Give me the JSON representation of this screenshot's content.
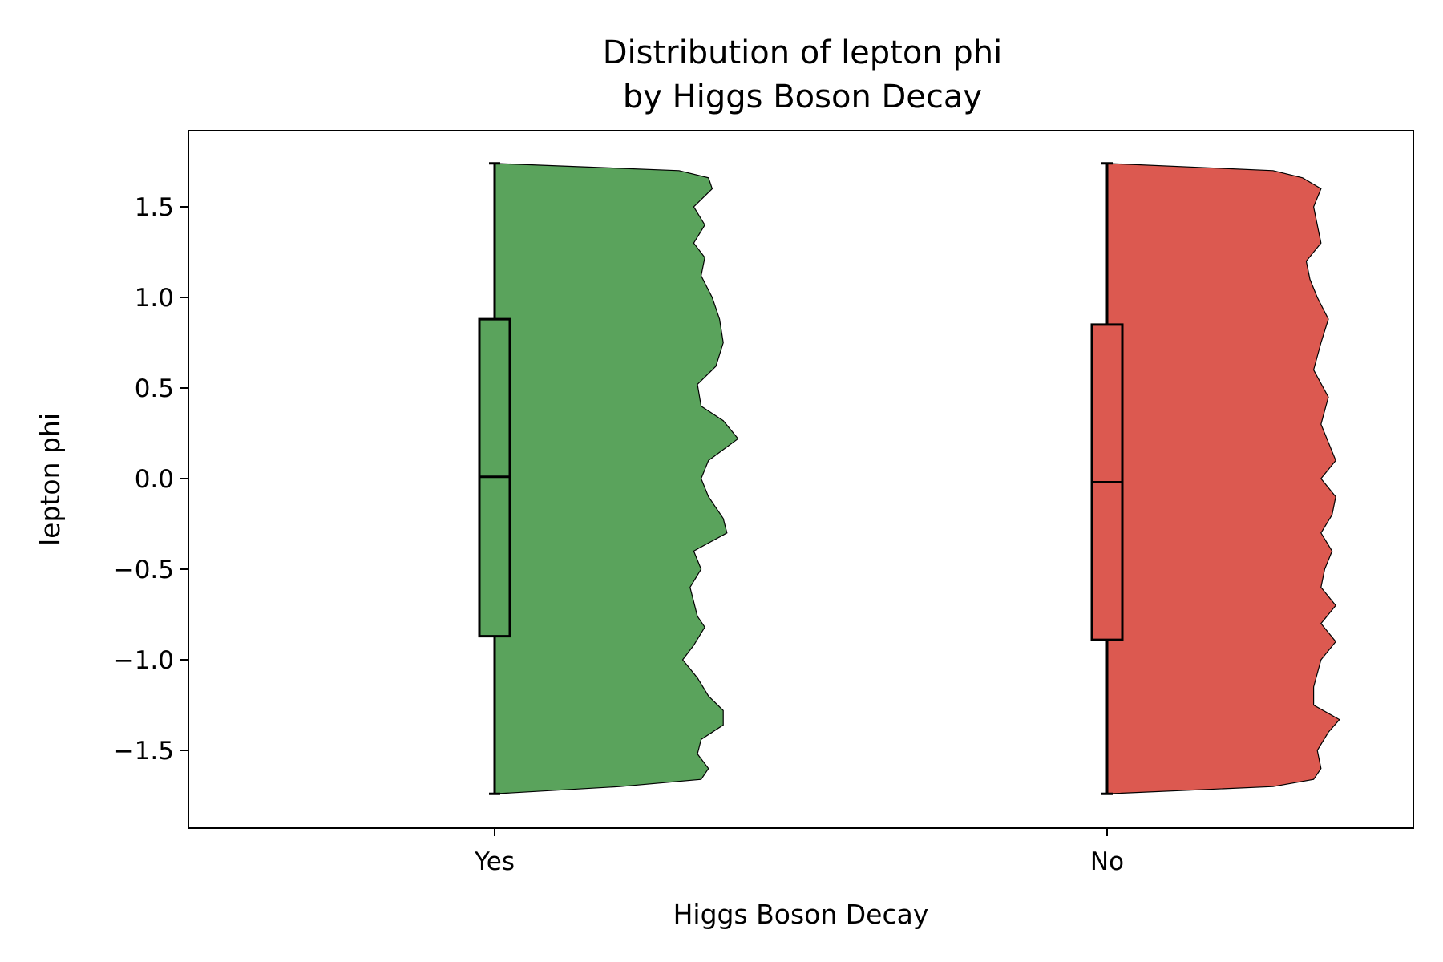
{
  "chart_data": {
    "type": "violin",
    "title_lines": [
      "Distribution of lepton phi",
      "by Higgs Boson Decay"
    ],
    "xlabel": "Higgs Boson Decay",
    "ylabel": "lepton phi",
    "ylim": [
      -1.9,
      1.9
    ],
    "yticks": [
      -1.5,
      -1.0,
      -0.5,
      0.0,
      0.5,
      1.0,
      1.5
    ],
    "ytick_labels": [
      "−1.5",
      "−1.0",
      "−0.5",
      "0.0",
      "0.5",
      "1.0",
      "1.5"
    ],
    "categories": [
      "Yes",
      "No"
    ],
    "grid": false,
    "legend": "none",
    "series": [
      {
        "category": "Yes",
        "color": "#5aa35c",
        "box": {
          "whisker_low": -1.74,
          "q1": -0.87,
          "median": 0.01,
          "q3": 0.88,
          "whisker_high": 1.74
        },
        "density": [
          [
            -1.74,
            0.0
          ],
          [
            -1.7,
            0.34
          ],
          [
            -1.66,
            0.56
          ],
          [
            -1.6,
            0.58
          ],
          [
            -1.52,
            0.55
          ],
          [
            -1.44,
            0.56
          ],
          [
            -1.36,
            0.62
          ],
          [
            -1.28,
            0.62
          ],
          [
            -1.2,
            0.58
          ],
          [
            -1.1,
            0.55
          ],
          [
            -1.0,
            0.51
          ],
          [
            -0.92,
            0.54
          ],
          [
            -0.82,
            0.57
          ],
          [
            -0.76,
            0.55
          ],
          [
            -0.68,
            0.54
          ],
          [
            -0.6,
            0.53
          ],
          [
            -0.5,
            0.56
          ],
          [
            -0.4,
            0.54
          ],
          [
            -0.3,
            0.63
          ],
          [
            -0.22,
            0.62
          ],
          [
            -0.1,
            0.58
          ],
          [
            0.0,
            0.56
          ],
          [
            0.1,
            0.58
          ],
          [
            0.22,
            0.66
          ],
          [
            0.32,
            0.62
          ],
          [
            0.4,
            0.56
          ],
          [
            0.52,
            0.55
          ],
          [
            0.62,
            0.6
          ],
          [
            0.75,
            0.62
          ],
          [
            0.88,
            0.61
          ],
          [
            1.0,
            0.59
          ],
          [
            1.12,
            0.56
          ],
          [
            1.22,
            0.57
          ],
          [
            1.3,
            0.54
          ],
          [
            1.4,
            0.57
          ],
          [
            1.5,
            0.54
          ],
          [
            1.6,
            0.59
          ],
          [
            1.66,
            0.58
          ],
          [
            1.7,
            0.5
          ],
          [
            1.74,
            0.0
          ]
        ]
      },
      {
        "category": "No",
        "color": "#dc5950",
        "box": {
          "whisker_low": -1.74,
          "q1": -0.89,
          "median": -0.02,
          "q3": 0.85,
          "whisker_high": 1.74
        },
        "density": [
          [
            -1.74,
            0.0
          ],
          [
            -1.7,
            0.45
          ],
          [
            -1.66,
            0.56
          ],
          [
            -1.6,
            0.58
          ],
          [
            -1.5,
            0.57
          ],
          [
            -1.4,
            0.6
          ],
          [
            -1.33,
            0.63
          ],
          [
            -1.25,
            0.56
          ],
          [
            -1.15,
            0.56
          ],
          [
            -1.0,
            0.58
          ],
          [
            -0.9,
            0.62
          ],
          [
            -0.8,
            0.58
          ],
          [
            -0.7,
            0.62
          ],
          [
            -0.6,
            0.58
          ],
          [
            -0.5,
            0.59
          ],
          [
            -0.4,
            0.61
          ],
          [
            -0.3,
            0.58
          ],
          [
            -0.2,
            0.61
          ],
          [
            -0.1,
            0.62
          ],
          [
            0.0,
            0.58
          ],
          [
            0.1,
            0.62
          ],
          [
            0.2,
            0.6
          ],
          [
            0.3,
            0.58
          ],
          [
            0.45,
            0.6
          ],
          [
            0.6,
            0.56
          ],
          [
            0.75,
            0.58
          ],
          [
            0.88,
            0.6
          ],
          [
            1.0,
            0.57
          ],
          [
            1.1,
            0.55
          ],
          [
            1.2,
            0.54
          ],
          [
            1.3,
            0.58
          ],
          [
            1.4,
            0.57
          ],
          [
            1.5,
            0.56
          ],
          [
            1.6,
            0.58
          ],
          [
            1.66,
            0.53
          ],
          [
            1.7,
            0.45
          ],
          [
            1.74,
            0.0
          ]
        ]
      }
    ]
  }
}
